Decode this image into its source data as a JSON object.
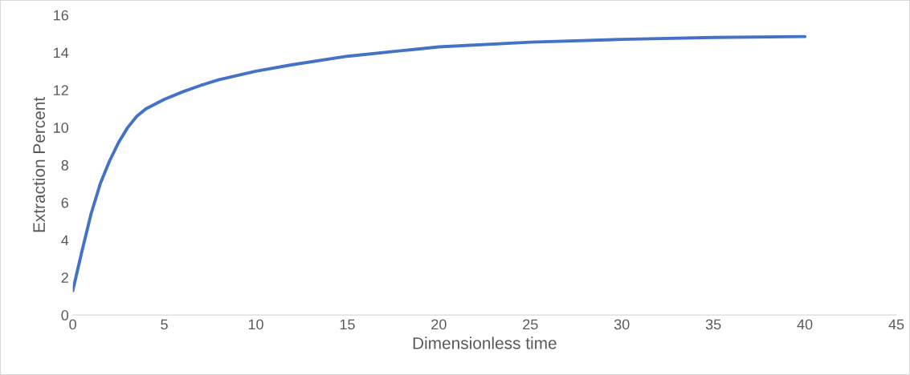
{
  "chart_data": {
    "type": "line",
    "xlabel": "Dimensionless time",
    "ylabel": "Extraction Percent",
    "x": [
      0,
      0.5,
      1,
      1.5,
      2,
      2.5,
      3,
      3.5,
      4,
      5,
      6,
      7,
      8,
      10,
      12,
      15,
      18,
      20,
      25,
      30,
      35,
      40
    ],
    "series": [
      {
        "color": "#4472c4",
        "values": [
          1.3,
          3.4,
          5.4,
          7.0,
          8.2,
          9.2,
          10.0,
          10.6,
          11.0,
          11.5,
          11.9,
          12.25,
          12.55,
          13.0,
          13.35,
          13.8,
          14.1,
          14.3,
          14.55,
          14.7,
          14.8,
          14.85
        ]
      }
    ],
    "xlim": [
      0,
      45
    ],
    "xticks": [
      0,
      5,
      10,
      15,
      20,
      25,
      30,
      35,
      40,
      45
    ],
    "ylim": [
      0,
      16
    ],
    "yticks": [
      0,
      2,
      4,
      6,
      8,
      10,
      12,
      14,
      16
    ],
    "grid": false,
    "marker": "none",
    "line_style": "solid"
  }
}
